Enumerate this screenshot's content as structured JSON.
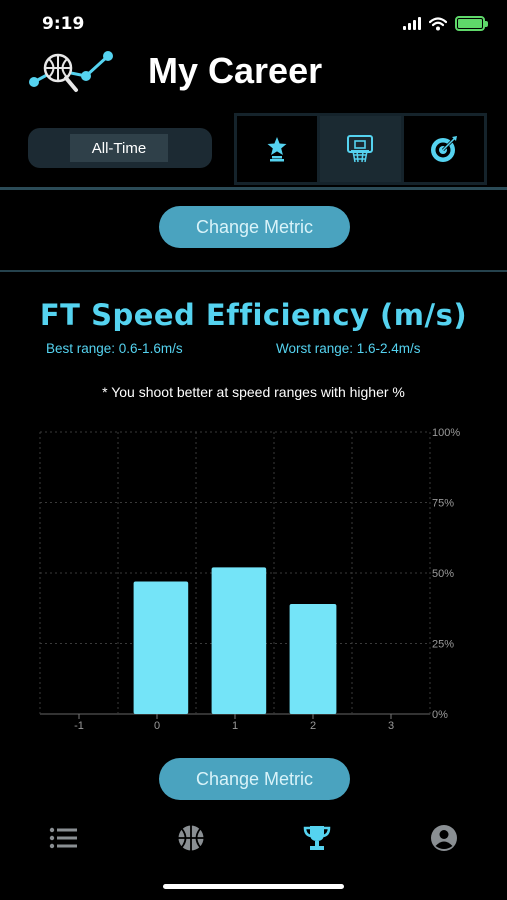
{
  "status_bar": {
    "time": "9:19"
  },
  "header": {
    "title": "My Career"
  },
  "period": {
    "selected": "All-Time"
  },
  "metric_tabs": [
    {
      "icon": "trophy-star-icon",
      "active": false
    },
    {
      "icon": "basketball-hoop-icon",
      "active": true
    },
    {
      "icon": "target-icon",
      "active": false
    }
  ],
  "change_metric_label": "Change Metric",
  "chart_info": {
    "best_range": "Best range: 0.6-1.6m/s",
    "worst_range": "Worst range: 1.6-2.4m/s",
    "note": "* You shoot better at speed ranges with higher %"
  },
  "chart_data": {
    "type": "bar",
    "title": "FT Speed Efficiency (m/s)",
    "x_ticks": [
      "-1",
      "0",
      "1",
      "2",
      "3"
    ],
    "xlim": [
      -1.5,
      3.5
    ],
    "y_ticks": [
      "0%",
      "25%",
      "50%",
      "75%",
      "100%"
    ],
    "ylim": [
      0,
      100
    ],
    "y_axis_position": "right",
    "grid": true,
    "bars": [
      {
        "x_start": -0.3,
        "x_end": 0.4,
        "value": 47
      },
      {
        "x_start": 0.7,
        "x_end": 1.4,
        "value": 52
      },
      {
        "x_start": 1.7,
        "x_end": 2.3,
        "value": 39
      }
    ],
    "bar_color": "#74e4f8"
  },
  "bottom_nav": [
    {
      "icon": "list-icon",
      "active": false
    },
    {
      "icon": "basketball-icon",
      "active": false
    },
    {
      "icon": "trophy-icon",
      "active": true
    },
    {
      "icon": "profile-icon",
      "active": false
    }
  ],
  "colors": {
    "accent": "#55d3f0",
    "button": "#4aa3bf",
    "inactive_icon": "#8a8f93"
  }
}
